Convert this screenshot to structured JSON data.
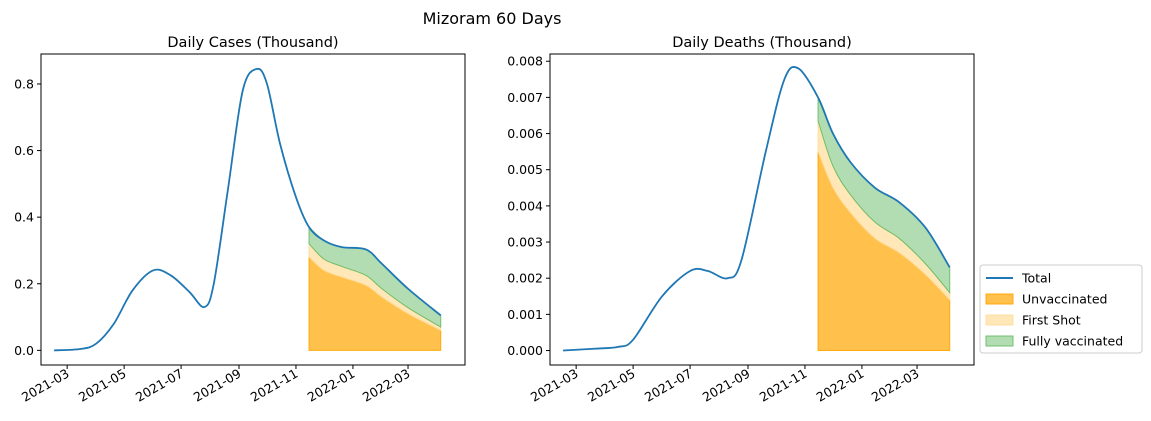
{
  "figure": {
    "suptitle": "Mizoram 60 Days"
  },
  "legend": {
    "placement": "outside-lower-right",
    "entries": [
      {
        "label": "Total",
        "kind": "line",
        "color": "#1f77b4"
      },
      {
        "label": "Unvaccinated",
        "kind": "area",
        "color": "#ffa500"
      },
      {
        "label": "First Shot",
        "kind": "area",
        "color": "#ffdd99"
      },
      {
        "label": "Fully vaccinated",
        "kind": "area",
        "color": "#66bb66"
      }
    ]
  },
  "chart_data": [
    {
      "type": "area",
      "title": "Daily Cases (Thousand)",
      "xlabel": "",
      "ylabel": "",
      "x_axis": "date",
      "xlim": [
        "2021-02-01",
        "2022-05-01"
      ],
      "ylim": [
        -0.044,
        0.89
      ],
      "x_ticks": [
        "2021-03-01",
        "2021-05-01",
        "2021-07-01",
        "2021-09-01",
        "2021-11-01",
        "2022-01-01",
        "2022-03-01"
      ],
      "x_tick_labels": [
        "2021-03",
        "2021-05",
        "2021-07",
        "2021-09",
        "2021-11",
        "2022-01",
        "2022-03"
      ],
      "y_ticks": [
        0.0,
        0.2,
        0.4,
        0.6,
        0.8
      ],
      "y_tick_labels": [
        "0.0",
        "0.2",
        "0.4",
        "0.6",
        "0.8"
      ],
      "grid": false,
      "series": [
        {
          "name": "Total",
          "type": "line",
          "color": "#1f77b4",
          "points": [
            [
              "2021-02-15",
              0.0
            ],
            [
              "2021-03-15",
              0.004
            ],
            [
              "2021-04-01",
              0.02
            ],
            [
              "2021-04-20",
              0.08
            ],
            [
              "2021-05-10",
              0.18
            ],
            [
              "2021-06-01",
              0.24
            ],
            [
              "2021-06-20",
              0.225
            ],
            [
              "2021-07-10",
              0.175
            ],
            [
              "2021-07-26",
              0.13
            ],
            [
              "2021-08-05",
              0.2
            ],
            [
              "2021-08-20",
              0.48
            ],
            [
              "2021-09-05",
              0.78
            ],
            [
              "2021-09-20",
              0.845
            ],
            [
              "2021-10-01",
              0.8
            ],
            [
              "2021-10-15",
              0.62
            ],
            [
              "2021-11-01",
              0.46
            ],
            [
              "2021-11-15",
              0.37
            ],
            [
              "2021-12-01",
              0.33
            ],
            [
              "2021-12-20",
              0.31
            ],
            [
              "2022-01-15",
              0.303
            ],
            [
              "2022-02-01",
              0.26
            ],
            [
              "2022-03-01",
              0.185
            ],
            [
              "2022-04-05",
              0.105
            ]
          ]
        },
        {
          "name": "Unvaccinated",
          "type": "area",
          "color": "#ffa500",
          "points": [
            [
              "2021-11-15",
              0.28
            ],
            [
              "2021-12-01",
              0.24
            ],
            [
              "2021-12-20",
              0.22
            ],
            [
              "2022-01-15",
              0.195
            ],
            [
              "2022-02-01",
              0.16
            ],
            [
              "2022-03-01",
              0.11
            ],
            [
              "2022-04-05",
              0.06
            ]
          ]
        },
        {
          "name": "First Shot",
          "type": "area",
          "color": "#ffdd99",
          "points": [
            [
              "2021-11-15",
              0.04
            ],
            [
              "2021-12-01",
              0.034
            ],
            [
              "2021-12-20",
              0.032
            ],
            [
              "2022-01-15",
              0.03
            ],
            [
              "2022-02-01",
              0.025
            ],
            [
              "2022-03-01",
              0.018
            ],
            [
              "2022-04-05",
              0.01
            ]
          ]
        },
        {
          "name": "Fully vaccinated",
          "type": "area",
          "color": "#66bb66",
          "points": [
            [
              "2021-11-15",
              0.05
            ],
            [
              "2021-12-01",
              0.056
            ],
            [
              "2021-12-20",
              0.058
            ],
            [
              "2022-01-15",
              0.078
            ],
            [
              "2022-02-01",
              0.075
            ],
            [
              "2022-03-01",
              0.057
            ],
            [
              "2022-04-05",
              0.035
            ]
          ]
        }
      ]
    },
    {
      "type": "area",
      "title": "Daily Deaths (Thousand)",
      "xlabel": "",
      "ylabel": "",
      "x_axis": "date",
      "xlim": [
        "2021-02-01",
        "2022-05-01"
      ],
      "ylim": [
        -0.0004,
        0.0082
      ],
      "x_ticks": [
        "2021-03-01",
        "2021-05-01",
        "2021-07-01",
        "2021-09-01",
        "2021-11-01",
        "2022-01-01",
        "2022-03-01"
      ],
      "x_tick_labels": [
        "2021-03",
        "2021-05",
        "2021-07",
        "2021-09",
        "2021-11",
        "2022-01",
        "2022-03"
      ],
      "y_ticks": [
        0.0,
        0.001,
        0.002,
        0.003,
        0.004,
        0.005,
        0.006,
        0.007,
        0.008
      ],
      "y_tick_labels": [
        "0.000",
        "0.001",
        "0.002",
        "0.003",
        "0.004",
        "0.005",
        "0.006",
        "0.007",
        "0.008"
      ],
      "grid": false,
      "series": [
        {
          "name": "Total",
          "type": "line",
          "color": "#1f77b4",
          "points": [
            [
              "2021-02-15",
              0.0
            ],
            [
              "2021-03-20",
              5e-05
            ],
            [
              "2021-04-15",
              0.0001
            ],
            [
              "2021-05-01",
              0.0003
            ],
            [
              "2021-06-01",
              0.0015
            ],
            [
              "2021-07-01",
              0.0022
            ],
            [
              "2021-07-20",
              0.0022
            ],
            [
              "2021-08-10",
              0.002
            ],
            [
              "2021-08-25",
              0.0025
            ],
            [
              "2021-09-20",
              0.0055
            ],
            [
              "2021-10-10",
              0.0075
            ],
            [
              "2021-10-25",
              0.0078
            ],
            [
              "2021-11-15",
              0.007
            ],
            [
              "2021-12-01",
              0.006
            ],
            [
              "2021-12-20",
              0.0052
            ],
            [
              "2022-01-15",
              0.0045
            ],
            [
              "2022-02-10",
              0.0041
            ],
            [
              "2022-03-10",
              0.0034
            ],
            [
              "2022-04-05",
              0.0023
            ]
          ]
        },
        {
          "name": "Unvaccinated",
          "type": "area",
          "color": "#ffa500",
          "points": [
            [
              "2021-11-15",
              0.0055
            ],
            [
              "2021-12-01",
              0.0045
            ],
            [
              "2021-12-20",
              0.0038
            ],
            [
              "2022-01-15",
              0.0031
            ],
            [
              "2022-02-10",
              0.0027
            ],
            [
              "2022-03-10",
              0.0021
            ],
            [
              "2022-04-05",
              0.0014
            ]
          ]
        },
        {
          "name": "First Shot",
          "type": "area",
          "color": "#ffdd99",
          "points": [
            [
              "2021-11-15",
              0.00085
            ],
            [
              "2021-12-01",
              0.0006
            ],
            [
              "2021-12-20",
              0.0005
            ],
            [
              "2022-01-15",
              0.00045
            ],
            [
              "2022-02-10",
              0.0004
            ],
            [
              "2022-03-10",
              0.0003
            ],
            [
              "2022-04-05",
              0.0002
            ]
          ]
        },
        {
          "name": "Fully vaccinated",
          "type": "area",
          "color": "#66bb66",
          "points": [
            [
              "2021-11-15",
              0.00065
            ],
            [
              "2021-12-01",
              0.0009
            ],
            [
              "2021-12-20",
              0.0009
            ],
            [
              "2022-01-15",
              0.00095
            ],
            [
              "2022-02-10",
              0.001
            ],
            [
              "2022-03-10",
              0.001
            ],
            [
              "2022-04-05",
              0.0007
            ]
          ]
        }
      ]
    }
  ]
}
